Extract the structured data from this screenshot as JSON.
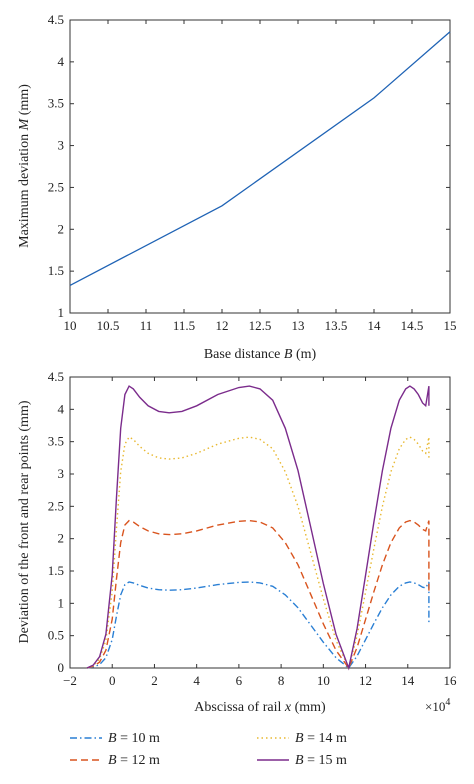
{
  "chart_data": [
    {
      "type": "line",
      "xlabel_prefix": "Base distance ",
      "xlabel_var": "B",
      "xlabel_suffix": " (m)",
      "ylabel_prefix": "Maximum deviation ",
      "ylabel_var": "M",
      "ylabel_suffix": " (mm)",
      "xlim": [
        10,
        15
      ],
      "ylim": [
        1,
        4.5
      ],
      "xticks": [
        "10",
        "10.5",
        "11",
        "11.5",
        "12",
        "12.5",
        "13",
        "13.5",
        "14",
        "14.5",
        "15"
      ],
      "yticks": [
        "1",
        "1.5",
        "2",
        "2.5",
        "3",
        "3.5",
        "4",
        "4.5"
      ],
      "grid": false,
      "series": [
        {
          "color": "#1f63b5",
          "x": [
            10,
            12,
            14,
            15
          ],
          "y": [
            1.33,
            2.28,
            3.57,
            4.36
          ]
        }
      ]
    },
    {
      "type": "line",
      "xlabel_prefix": "Abscissa of rail ",
      "xlabel_var": "x",
      "xlabel_suffix": " (mm)",
      "ylabel": "Deviation of the front and rear points (mm)",
      "x_multiplier_base": "×10",
      "x_multiplier_exp": "4",
      "xlim": [
        -2,
        16
      ],
      "ylim": [
        0,
        4.5
      ],
      "xticks": [
        "−2",
        "0",
        "2",
        "4",
        "6",
        "8",
        "10",
        "12",
        "14",
        "16"
      ],
      "yticks": [
        "0",
        "0.5",
        "1",
        "1.5",
        "2",
        "2.5",
        "3",
        "3.5",
        "4",
        "4.5"
      ],
      "grid": false,
      "legend_position": "below",
      "series": [
        {
          "name_var": "B",
          "name_rest": " = 10 m",
          "color": "#2a7fd4",
          "dash": "dashdot",
          "peak": 1.33
        },
        {
          "name_var": "B",
          "name_rest": " = 12 m",
          "color": "#d9541e",
          "dash": "dashed",
          "peak": 2.28
        },
        {
          "name_var": "B",
          "name_rest": " = 14 m",
          "color": "#e8b830",
          "dash": "dotted",
          "peak": 3.57
        },
        {
          "name_var": "B",
          "name_rest": " = 15 m",
          "color": "#7b2c8c",
          "dash": "solid",
          "peak": 4.36
        }
      ],
      "normalized_profile": {
        "x": [
          -1.2,
          -0.9,
          -0.6,
          -0.3,
          0.0,
          0.2,
          0.4,
          0.6,
          0.8,
          1.0,
          1.3,
          1.7,
          2.2,
          2.7,
          3.3,
          4.0,
          5.0,
          6.0,
          6.5,
          7.0,
          7.6,
          8.2,
          8.8,
          9.4,
          10.0,
          10.6,
          11.2,
          11.6,
          12.0,
          12.4,
          12.8,
          13.2,
          13.6,
          13.9,
          14.1,
          14.3,
          14.5,
          14.7,
          14.85,
          15.0
        ],
        "y": [
          0.0,
          0.01,
          0.04,
          0.12,
          0.33,
          0.6,
          0.85,
          0.97,
          1.0,
          0.99,
          0.96,
          0.93,
          0.91,
          0.905,
          0.91,
          0.93,
          0.97,
          0.995,
          1.0,
          0.99,
          0.95,
          0.85,
          0.7,
          0.5,
          0.3,
          0.12,
          0.0,
          0.14,
          0.33,
          0.52,
          0.7,
          0.85,
          0.95,
          0.99,
          1.0,
          0.99,
          0.97,
          0.94,
          0.93,
          1.0
        ]
      },
      "tail_drop_to": [
        0.5,
        0.52,
        0.9,
        0.93
      ]
    }
  ]
}
